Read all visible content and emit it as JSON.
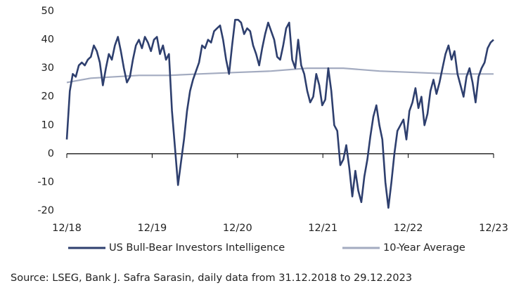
{
  "chart_data": {
    "type": "line",
    "source": "Source: LSEG, Bank J. Safra Sarasin, daily data from 31.12.2018 to 29.12.2023",
    "xlim": [
      0,
      71
    ],
    "xticks": [
      {
        "value": 0,
        "label": "12/18"
      },
      {
        "value": 14.2,
        "label": "12/19"
      },
      {
        "value": 28.4,
        "label": "12/20"
      },
      {
        "value": 42.6,
        "label": "12/21"
      },
      {
        "value": 56.8,
        "label": "12/22"
      },
      {
        "value": 71,
        "label": "12/23"
      }
    ],
    "ylim": [
      -20,
      50
    ],
    "yticks": [
      -20,
      -10,
      0,
      10,
      20,
      30,
      40,
      50
    ],
    "grid": false,
    "legend": "bottom",
    "series": [
      {
        "name": "US Bull-Bear Investors Intelligence",
        "color": "#2e3f6e",
        "x": [
          0,
          0.5,
          1,
          1.5,
          2,
          2.5,
          3,
          3.5,
          4,
          4.5,
          5,
          5.5,
          6,
          6.5,
          7,
          7.5,
          8,
          8.5,
          9,
          9.5,
          10,
          10.5,
          11,
          11.5,
          12,
          12.5,
          13,
          13.5,
          14,
          14.5,
          15,
          15.5,
          16,
          16.5,
          17,
          17.5,
          18,
          18.5,
          19,
          19.5,
          20,
          20.5,
          21,
          21.5,
          22,
          22.5,
          23,
          23.5,
          24,
          24.5,
          25,
          25.5,
          26,
          26.5,
          27,
          27.5,
          28,
          28.5,
          29,
          29.5,
          30,
          30.5,
          31,
          31.5,
          32,
          32.5,
          33,
          33.5,
          34,
          34.5,
          35,
          35.5,
          36,
          36.5,
          37,
          37.5,
          38,
          38.5,
          39,
          39.5,
          40,
          40.5,
          41,
          41.5,
          42,
          42.5,
          43,
          43.5,
          44,
          44.5,
          45,
          45.5,
          46,
          46.5,
          47,
          47.5,
          48,
          48.5,
          49,
          49.5,
          50,
          50.5,
          51,
          51.5,
          52,
          52.5,
          53,
          53.5,
          54,
          54.5,
          55,
          55.5,
          56,
          56.5,
          57,
          57.5,
          58,
          58.5,
          59,
          59.5,
          60,
          60.5,
          61,
          61.5,
          62,
          62.5,
          63,
          63.5,
          64,
          64.5,
          65,
          65.5,
          66,
          66.5,
          67,
          67.5,
          68,
          68.5,
          69,
          69.5,
          70,
          70.5,
          71
        ],
        "values": [
          5,
          22,
          28,
          27,
          31,
          32,
          31,
          33,
          34,
          38,
          36,
          32,
          24,
          30,
          35,
          33,
          38,
          41,
          36,
          30,
          25,
          27,
          33,
          38,
          40,
          37,
          41,
          39,
          36,
          40,
          41,
          35,
          38,
          33,
          35,
          15,
          2,
          -11,
          -3,
          5,
          15,
          22,
          26,
          29,
          32,
          38,
          37,
          40,
          39,
          43,
          44,
          45,
          40,
          33,
          28,
          38,
          47,
          47,
          46,
          42,
          44,
          43,
          38,
          35,
          31,
          37,
          42,
          46,
          43,
          40,
          34,
          33,
          38,
          44,
          46,
          33,
          30,
          40,
          31,
          28,
          22,
          18,
          20,
          28,
          24,
          17,
          19,
          30,
          22,
          10,
          8,
          -4,
          -2,
          3,
          -5,
          -15,
          -6,
          -13,
          -17,
          -8,
          -2,
          6,
          13,
          17,
          10,
          5,
          -10,
          -19,
          -10,
          0,
          8,
          10,
          12,
          5,
          15,
          18,
          23,
          16,
          20,
          10,
          14,
          22,
          26,
          21,
          25,
          30,
          35,
          38,
          33,
          36,
          28,
          24,
          20,
          27,
          30,
          25,
          18,
          27,
          30,
          32,
          37,
          39,
          40
        ]
      },
      {
        "name": "10-Year Average",
        "color": "#a3abc0",
        "x": [
          0,
          4,
          8,
          12,
          17,
          22,
          28,
          34,
          40,
          46,
          52,
          58,
          64,
          71
        ],
        "values": [
          25,
          26.5,
          27,
          27.5,
          27.5,
          28,
          28.5,
          29,
          30,
          30,
          29,
          28.5,
          28,
          28
        ]
      }
    ]
  }
}
